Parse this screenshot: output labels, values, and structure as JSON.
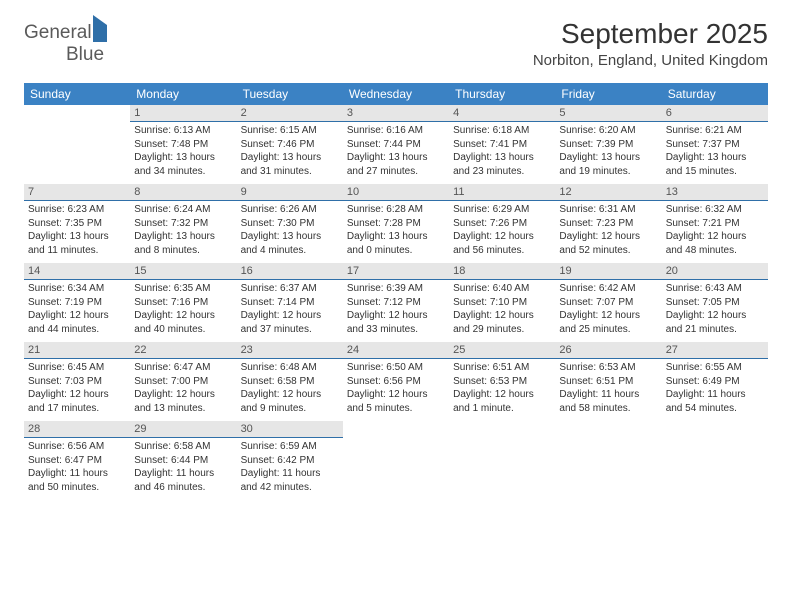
{
  "logo": {
    "word1": "General",
    "word2": "Blue"
  },
  "title": "September 2025",
  "location": "Norbiton, England, United Kingdom",
  "dow": [
    "Sunday",
    "Monday",
    "Tuesday",
    "Wednesday",
    "Thursday",
    "Friday",
    "Saturday"
  ],
  "colors": {
    "header_bg": "#3b82c4",
    "header_text": "#ffffff",
    "daynum_bg": "#e6e6e6",
    "daynum_border": "#2f6fa8",
    "text": "#333333",
    "logo_gray": "#5a5a5a",
    "logo_blue": "#3b82c4"
  },
  "cells": [
    [
      {
        "day": "",
        "lines": []
      },
      {
        "day": "1",
        "lines": [
          "Sunrise: 6:13 AM",
          "Sunset: 7:48 PM",
          "Daylight: 13 hours and 34 minutes."
        ]
      },
      {
        "day": "2",
        "lines": [
          "Sunrise: 6:15 AM",
          "Sunset: 7:46 PM",
          "Daylight: 13 hours and 31 minutes."
        ]
      },
      {
        "day": "3",
        "lines": [
          "Sunrise: 6:16 AM",
          "Sunset: 7:44 PM",
          "Daylight: 13 hours and 27 minutes."
        ]
      },
      {
        "day": "4",
        "lines": [
          "Sunrise: 6:18 AM",
          "Sunset: 7:41 PM",
          "Daylight: 13 hours and 23 minutes."
        ]
      },
      {
        "day": "5",
        "lines": [
          "Sunrise: 6:20 AM",
          "Sunset: 7:39 PM",
          "Daylight: 13 hours and 19 minutes."
        ]
      },
      {
        "day": "6",
        "lines": [
          "Sunrise: 6:21 AM",
          "Sunset: 7:37 PM",
          "Daylight: 13 hours and 15 minutes."
        ]
      }
    ],
    [
      {
        "day": "7",
        "lines": [
          "Sunrise: 6:23 AM",
          "Sunset: 7:35 PM",
          "Daylight: 13 hours and 11 minutes."
        ]
      },
      {
        "day": "8",
        "lines": [
          "Sunrise: 6:24 AM",
          "Sunset: 7:32 PM",
          "Daylight: 13 hours and 8 minutes."
        ]
      },
      {
        "day": "9",
        "lines": [
          "Sunrise: 6:26 AM",
          "Sunset: 7:30 PM",
          "Daylight: 13 hours and 4 minutes."
        ]
      },
      {
        "day": "10",
        "lines": [
          "Sunrise: 6:28 AM",
          "Sunset: 7:28 PM",
          "Daylight: 13 hours and 0 minutes."
        ]
      },
      {
        "day": "11",
        "lines": [
          "Sunrise: 6:29 AM",
          "Sunset: 7:26 PM",
          "Daylight: 12 hours and 56 minutes."
        ]
      },
      {
        "day": "12",
        "lines": [
          "Sunrise: 6:31 AM",
          "Sunset: 7:23 PM",
          "Daylight: 12 hours and 52 minutes."
        ]
      },
      {
        "day": "13",
        "lines": [
          "Sunrise: 6:32 AM",
          "Sunset: 7:21 PM",
          "Daylight: 12 hours and 48 minutes."
        ]
      }
    ],
    [
      {
        "day": "14",
        "lines": [
          "Sunrise: 6:34 AM",
          "Sunset: 7:19 PM",
          "Daylight: 12 hours and 44 minutes."
        ]
      },
      {
        "day": "15",
        "lines": [
          "Sunrise: 6:35 AM",
          "Sunset: 7:16 PM",
          "Daylight: 12 hours and 40 minutes."
        ]
      },
      {
        "day": "16",
        "lines": [
          "Sunrise: 6:37 AM",
          "Sunset: 7:14 PM",
          "Daylight: 12 hours and 37 minutes."
        ]
      },
      {
        "day": "17",
        "lines": [
          "Sunrise: 6:39 AM",
          "Sunset: 7:12 PM",
          "Daylight: 12 hours and 33 minutes."
        ]
      },
      {
        "day": "18",
        "lines": [
          "Sunrise: 6:40 AM",
          "Sunset: 7:10 PM",
          "Daylight: 12 hours and 29 minutes."
        ]
      },
      {
        "day": "19",
        "lines": [
          "Sunrise: 6:42 AM",
          "Sunset: 7:07 PM",
          "Daylight: 12 hours and 25 minutes."
        ]
      },
      {
        "day": "20",
        "lines": [
          "Sunrise: 6:43 AM",
          "Sunset: 7:05 PM",
          "Daylight: 12 hours and 21 minutes."
        ]
      }
    ],
    [
      {
        "day": "21",
        "lines": [
          "Sunrise: 6:45 AM",
          "Sunset: 7:03 PM",
          "Daylight: 12 hours and 17 minutes."
        ]
      },
      {
        "day": "22",
        "lines": [
          "Sunrise: 6:47 AM",
          "Sunset: 7:00 PM",
          "Daylight: 12 hours and 13 minutes."
        ]
      },
      {
        "day": "23",
        "lines": [
          "Sunrise: 6:48 AM",
          "Sunset: 6:58 PM",
          "Daylight: 12 hours and 9 minutes."
        ]
      },
      {
        "day": "24",
        "lines": [
          "Sunrise: 6:50 AM",
          "Sunset: 6:56 PM",
          "Daylight: 12 hours and 5 minutes."
        ]
      },
      {
        "day": "25",
        "lines": [
          "Sunrise: 6:51 AM",
          "Sunset: 6:53 PM",
          "Daylight: 12 hours and 1 minute."
        ]
      },
      {
        "day": "26",
        "lines": [
          "Sunrise: 6:53 AM",
          "Sunset: 6:51 PM",
          "Daylight: 11 hours and 58 minutes."
        ]
      },
      {
        "day": "27",
        "lines": [
          "Sunrise: 6:55 AM",
          "Sunset: 6:49 PM",
          "Daylight: 11 hours and 54 minutes."
        ]
      }
    ],
    [
      {
        "day": "28",
        "lines": [
          "Sunrise: 6:56 AM",
          "Sunset: 6:47 PM",
          "Daylight: 11 hours and 50 minutes."
        ]
      },
      {
        "day": "29",
        "lines": [
          "Sunrise: 6:58 AM",
          "Sunset: 6:44 PM",
          "Daylight: 11 hours and 46 minutes."
        ]
      },
      {
        "day": "30",
        "lines": [
          "Sunrise: 6:59 AM",
          "Sunset: 6:42 PM",
          "Daylight: 11 hours and 42 minutes."
        ]
      },
      {
        "day": "",
        "lines": []
      },
      {
        "day": "",
        "lines": []
      },
      {
        "day": "",
        "lines": []
      },
      {
        "day": "",
        "lines": []
      }
    ]
  ]
}
